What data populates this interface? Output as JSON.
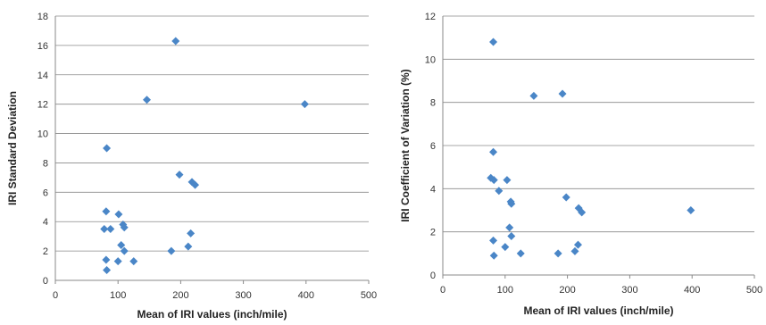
{
  "chart_data": [
    {
      "type": "scatter",
      "title": "",
      "xlabel": "Mean of IRI values (inch/mile)",
      "ylabel": "IRI Standard Deviation",
      "xlim": [
        0,
        500
      ],
      "ylim": [
        0,
        18
      ],
      "xticks": [
        0,
        100,
        200,
        300,
        400,
        500
      ],
      "yticks": [
        0,
        2,
        4,
        6,
        8,
        10,
        12,
        14,
        16,
        18
      ],
      "grid": "horizontal",
      "legend": "none",
      "marker_color": "#4a86c7",
      "marker": "diamond",
      "points": [
        {
          "x": 192,
          "y": 16.3
        },
        {
          "x": 146,
          "y": 12.3
        },
        {
          "x": 398,
          "y": 12.0
        },
        {
          "x": 82,
          "y": 9.0
        },
        {
          "x": 198,
          "y": 7.2
        },
        {
          "x": 218,
          "y": 6.7
        },
        {
          "x": 223,
          "y": 6.5
        },
        {
          "x": 81,
          "y": 4.7
        },
        {
          "x": 101,
          "y": 4.5
        },
        {
          "x": 108,
          "y": 3.8
        },
        {
          "x": 110,
          "y": 3.6
        },
        {
          "x": 78,
          "y": 3.5
        },
        {
          "x": 88,
          "y": 3.5
        },
        {
          "x": 216,
          "y": 3.2
        },
        {
          "x": 105,
          "y": 2.4
        },
        {
          "x": 212,
          "y": 2.3
        },
        {
          "x": 110,
          "y": 2.0
        },
        {
          "x": 185,
          "y": 2.0
        },
        {
          "x": 81,
          "y": 1.4
        },
        {
          "x": 100,
          "y": 1.3
        },
        {
          "x": 125,
          "y": 1.3
        },
        {
          "x": 82,
          "y": 0.7
        }
      ]
    },
    {
      "type": "scatter",
      "title": "",
      "xlabel": "Mean of IRI values (inch/mile)",
      "ylabel": "IRI Coefficient of Variation (%)",
      "xlim": [
        0,
        500
      ],
      "ylim": [
        0,
        12
      ],
      "xticks": [
        0,
        100,
        200,
        300,
        400,
        500
      ],
      "yticks": [
        0,
        2,
        4,
        6,
        8,
        10,
        12
      ],
      "grid": "horizontal",
      "legend": "none",
      "marker_color": "#4a86c7",
      "marker": "diamond",
      "points": [
        {
          "x": 81,
          "y": 10.8
        },
        {
          "x": 146,
          "y": 8.3
        },
        {
          "x": 192,
          "y": 8.4
        },
        {
          "x": 81,
          "y": 5.7
        },
        {
          "x": 77,
          "y": 4.5
        },
        {
          "x": 82,
          "y": 4.4
        },
        {
          "x": 103,
          "y": 4.4
        },
        {
          "x": 90,
          "y": 3.9
        },
        {
          "x": 198,
          "y": 3.6
        },
        {
          "x": 109,
          "y": 3.4
        },
        {
          "x": 110,
          "y": 3.3
        },
        {
          "x": 218,
          "y": 3.1
        },
        {
          "x": 223,
          "y": 2.9
        },
        {
          "x": 398,
          "y": 3.0
        },
        {
          "x": 107,
          "y": 2.2
        },
        {
          "x": 110,
          "y": 1.8
        },
        {
          "x": 81,
          "y": 1.6
        },
        {
          "x": 217,
          "y": 1.4
        },
        {
          "x": 100,
          "y": 1.3
        },
        {
          "x": 212,
          "y": 1.1
        },
        {
          "x": 125,
          "y": 1.0
        },
        {
          "x": 185,
          "y": 1.0
        },
        {
          "x": 82,
          "y": 0.9
        }
      ]
    }
  ]
}
